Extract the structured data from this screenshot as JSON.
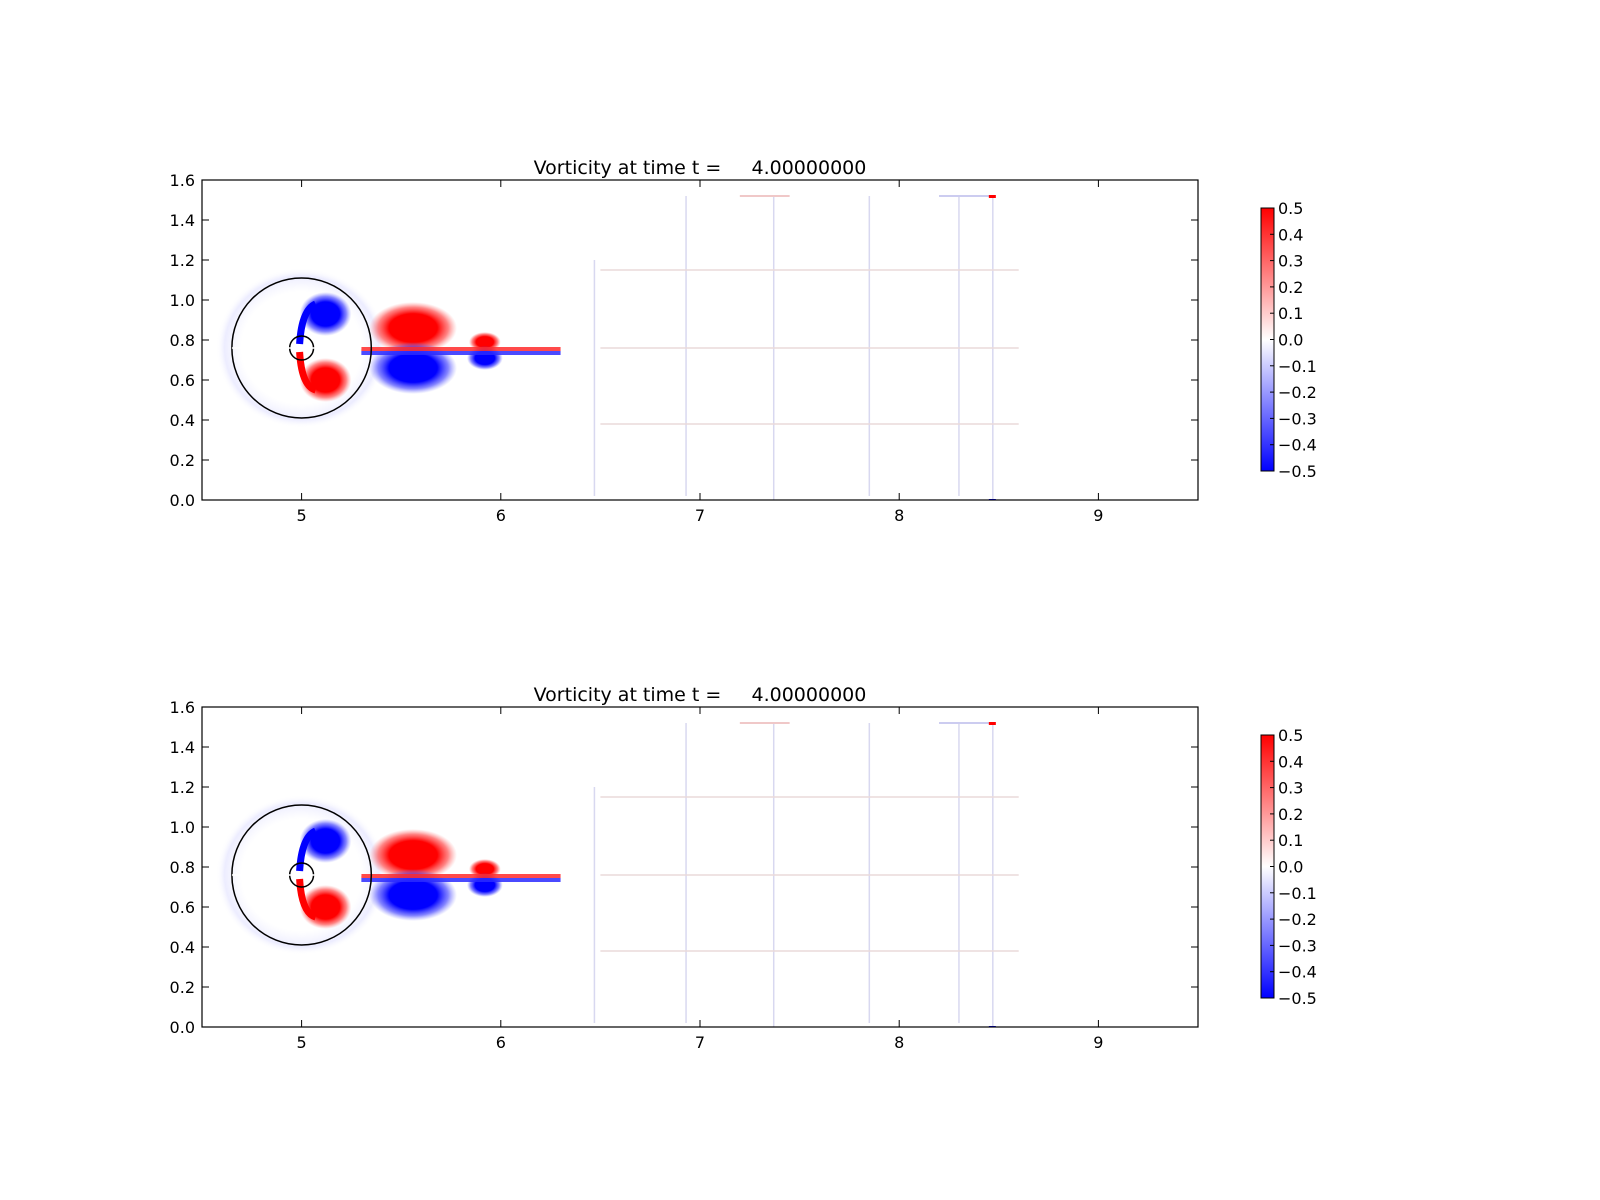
{
  "chart_data": [
    {
      "type": "heatmap",
      "title": "Vorticity at time t =     4.00000000",
      "xlim": [
        4.5,
        9.5
      ],
      "ylim": [
        0.0,
        1.6
      ],
      "xticks": [
        "5",
        "6",
        "7",
        "8",
        "9"
      ],
      "yticks": [
        "0.0",
        "0.2",
        "0.4",
        "0.6",
        "0.8",
        "1.0",
        "1.2",
        "1.4",
        "1.6"
      ],
      "colorbar": {
        "min": -0.5,
        "max": 0.5,
        "ticks": [
          "0.5",
          "0.4",
          "0.3",
          "0.2",
          "0.1",
          "0.0",
          "−0.1",
          "−0.2",
          "−0.3",
          "−0.4",
          "−0.5"
        ],
        "colors": [
          "#0000ff",
          "#ffffff",
          "#ff0000"
        ]
      },
      "circles": [
        {
          "cx": 5.0,
          "cy": 0.76,
          "r": 0.35
        },
        {
          "cx": 5.0,
          "cy": 0.76,
          "r": 0.06
        }
      ],
      "vortices": [
        {
          "x": 5.12,
          "y": 0.93,
          "rx": 0.13,
          "ry": 0.11,
          "w": -0.5
        },
        {
          "x": 5.12,
          "y": 0.6,
          "rx": 0.13,
          "ry": 0.11,
          "w": 0.5
        },
        {
          "x": 5.56,
          "y": 0.86,
          "rx": 0.22,
          "ry": 0.13,
          "w": 0.5
        },
        {
          "x": 5.56,
          "y": 0.66,
          "rx": 0.22,
          "ry": 0.13,
          "w": -0.5
        },
        {
          "x": 5.92,
          "y": 0.79,
          "rx": 0.08,
          "ry": 0.05,
          "w": 0.5
        },
        {
          "x": 5.92,
          "y": 0.71,
          "rx": 0.09,
          "ry": 0.06,
          "w": -0.5
        }
      ]
    },
    {
      "type": "heatmap",
      "title": "Vorticity at time t =     4.00000000",
      "xlim": [
        4.5,
        9.5
      ],
      "ylim": [
        0.0,
        1.6
      ],
      "xticks": [
        "5",
        "6",
        "7",
        "8",
        "9"
      ],
      "yticks": [
        "0.0",
        "0.2",
        "0.4",
        "0.6",
        "0.8",
        "1.0",
        "1.2",
        "1.4",
        "1.6"
      ],
      "colorbar": {
        "min": -0.5,
        "max": 0.5,
        "ticks": [
          "0.5",
          "0.4",
          "0.3",
          "0.2",
          "0.1",
          "0.0",
          "−0.1",
          "−0.2",
          "−0.3",
          "−0.4",
          "−0.5"
        ],
        "colors": [
          "#0000ff",
          "#ffffff",
          "#ff0000"
        ]
      },
      "circles": [
        {
          "cx": 5.0,
          "cy": 0.76,
          "r": 0.35
        },
        {
          "cx": 5.0,
          "cy": 0.76,
          "r": 0.06
        }
      ],
      "vortices": [
        {
          "x": 5.12,
          "y": 0.93,
          "rx": 0.13,
          "ry": 0.11,
          "w": -0.5
        },
        {
          "x": 5.12,
          "y": 0.6,
          "rx": 0.13,
          "ry": 0.11,
          "w": 0.5
        },
        {
          "x": 5.56,
          "y": 0.86,
          "rx": 0.22,
          "ry": 0.13,
          "w": 0.5
        },
        {
          "x": 5.56,
          "y": 0.66,
          "rx": 0.22,
          "ry": 0.13,
          "w": -0.5
        },
        {
          "x": 5.92,
          "y": 0.79,
          "rx": 0.08,
          "ry": 0.05,
          "w": 0.5
        },
        {
          "x": 5.92,
          "y": 0.71,
          "rx": 0.09,
          "ry": 0.06,
          "w": -0.5
        }
      ]
    }
  ]
}
